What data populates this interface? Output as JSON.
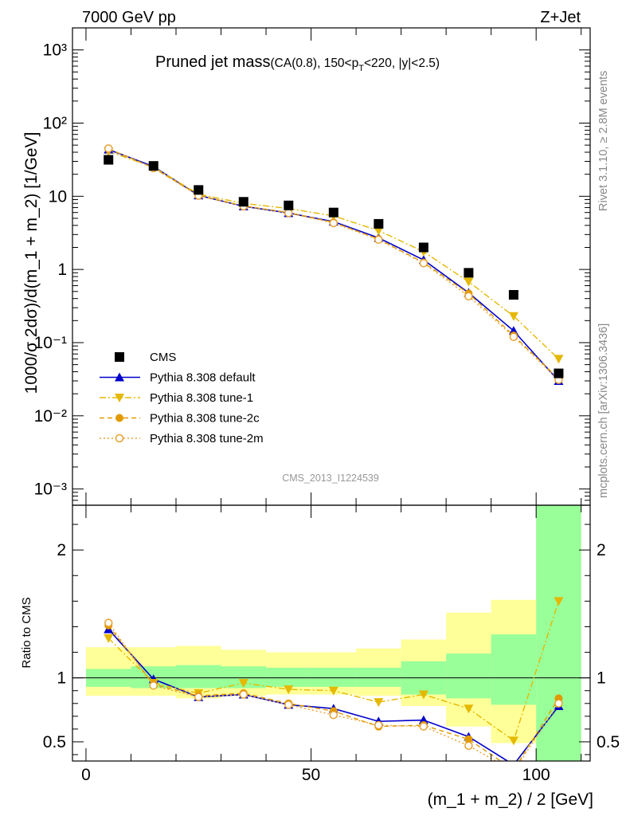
{
  "header": {
    "left": "7000 GeV pp",
    "right": "Z+Jet"
  },
  "side_labels": {
    "rivet": "Rivet 3.1.10, ≥ 2.8M events",
    "mcplots": "mcplots.cern.ch [arXiv:1306.3436]"
  },
  "analysis_id": "CMS_2013_I1224539",
  "title": {
    "main": "Pruned jet mass",
    "detail": "(CA(0.8), 150<p",
    "sub": "T",
    "detail2": "<220, |y|<2.5)"
  },
  "colors": {
    "cms": "#000000",
    "default": "#0000cc",
    "tune1": "#e5b800",
    "tune2c": "#e09a00",
    "tune2m": "#e8a030",
    "band_inner": "#99ff99",
    "band_outer": "#ffff99"
  },
  "chart_data": [
    {
      "type": "scatter",
      "panel": "main",
      "ylabel": "1000/σ 2dσ)/d(m_1 + m_2) [1/GeV]",
      "y_scale": "log",
      "ylim": [
        0.0006,
        2000
      ],
      "xlim": [
        -3,
        112
      ],
      "y_tick_labels": [
        "10⁻³",
        "10⁻²",
        "10⁻¹",
        "1",
        "10",
        "10²",
        "10³"
      ],
      "legend_position": "lower-left",
      "x": [
        5,
        15,
        25,
        35,
        45,
        55,
        65,
        75,
        85,
        95,
        105
      ],
      "series": [
        {
          "name": "CMS",
          "marker": "square",
          "values": [
            31.5,
            26,
            12.2,
            8.4,
            7.5,
            6.0,
            4.2,
            2.0,
            0.9,
            0.45,
            0.038
          ]
        },
        {
          "name": "Pythia 8.308 default",
          "marker": "triangle-up",
          "line": "solid",
          "values": [
            43.5,
            25.5,
            10.3,
            7.3,
            5.9,
            4.5,
            2.7,
            1.35,
            0.48,
            0.145,
            0.03
          ]
        },
        {
          "name": "Pythia 8.308 tune-1",
          "marker": "triangle-down",
          "line": "dashdot",
          "values": [
            41,
            25,
            10.7,
            8.0,
            6.8,
            5.4,
            3.4,
            1.75,
            0.68,
            0.23,
            0.06
          ]
        },
        {
          "name": "Pythia 8.308 tune-2c",
          "marker": "circle",
          "line": "dashed",
          "values": [
            44.5,
            24.5,
            10.3,
            7.4,
            6.0,
            4.4,
            2.6,
            1.24,
            0.47,
            0.125,
            0.032
          ]
        },
        {
          "name": "Pythia 8.308 tune-2m",
          "marker": "circle-open",
          "line": "dotted",
          "values": [
            45,
            24.3,
            10.2,
            7.3,
            5.9,
            4.3,
            2.55,
            1.22,
            0.43,
            0.12,
            0.031
          ]
        }
      ]
    },
    {
      "type": "line",
      "panel": "ratio",
      "ylabel": "Ratio to CMS",
      "xlabel": "(m_1 + m_2) / 2 [GeV]",
      "ylim": [
        0.35,
        2.35
      ],
      "xlim": [
        -3,
        112
      ],
      "x_ticks": [
        0,
        50,
        100
      ],
      "y_ticks": [
        0.5,
        1,
        2
      ],
      "x": [
        5,
        15,
        25,
        35,
        45,
        55,
        65,
        75,
        85,
        95,
        105
      ],
      "bands": {
        "edges": [
          0,
          10,
          20,
          30,
          40,
          50,
          60,
          70,
          80,
          90,
          100,
          110
        ],
        "inner": [
          [
            0.93,
            1.07
          ],
          [
            0.92,
            1.09
          ],
          [
            0.92,
            1.1
          ],
          [
            0.92,
            1.09
          ],
          [
            0.93,
            1.08
          ],
          [
            0.93,
            1.08
          ],
          [
            0.93,
            1.08
          ],
          [
            0.87,
            1.13
          ],
          [
            0.84,
            1.19
          ],
          [
            0.79,
            1.34
          ],
          [
            0.3,
            2.5
          ]
        ],
        "outer": [
          [
            0.86,
            1.24
          ],
          [
            0.86,
            1.24
          ],
          [
            0.84,
            1.25
          ],
          [
            0.86,
            1.22
          ],
          [
            0.87,
            1.2
          ],
          [
            0.87,
            1.2
          ],
          [
            0.86,
            1.23
          ],
          [
            0.78,
            1.3
          ],
          [
            0.62,
            1.51
          ],
          [
            0.49,
            1.61
          ],
          [
            0.3,
            2.5
          ]
        ]
      },
      "series": [
        {
          "name": "Pythia 8.308 default",
          "values": [
            1.38,
            0.99,
            0.85,
            0.87,
            0.79,
            0.76,
            0.66,
            0.67,
            0.54,
            0.32,
            0.78
          ]
        },
        {
          "name": "Pythia 8.308 tune-1",
          "values": [
            1.31,
            0.96,
            0.88,
            0.96,
            0.91,
            0.9,
            0.81,
            0.87,
            0.76,
            0.51,
            1.6
          ]
        },
        {
          "name": "Pythia 8.308 tune-2c",
          "values": [
            1.41,
            0.95,
            0.86,
            0.88,
            0.8,
            0.74,
            0.62,
            0.63,
            0.52,
            0.28,
            0.84
          ]
        },
        {
          "name": "Pythia 8.308 tune-2m",
          "values": [
            1.43,
            0.94,
            0.85,
            0.87,
            0.79,
            0.71,
            0.63,
            0.62,
            0.47,
            0.27,
            0.8
          ]
        }
      ]
    }
  ]
}
